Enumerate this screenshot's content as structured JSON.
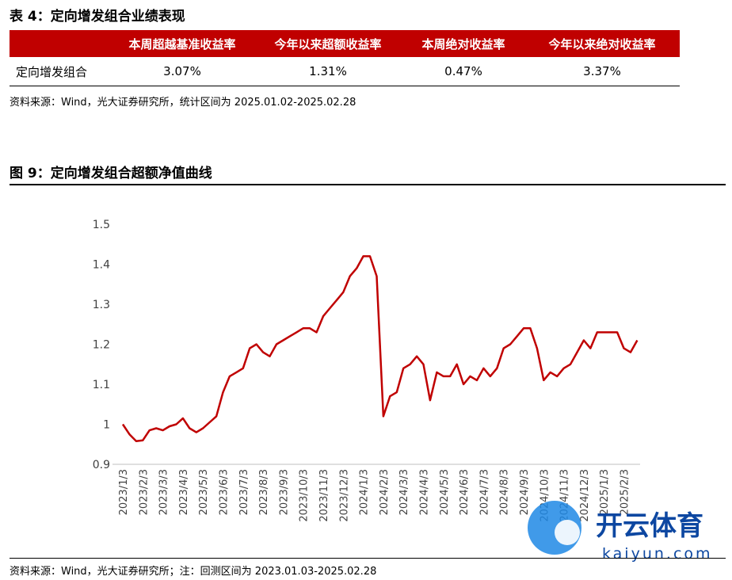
{
  "table_title": "表 4：定向增发组合业绩表现",
  "table": {
    "header": [
      "本周超越基准收益率",
      "今年以来超额收益率",
      "本周绝对收益率",
      "今年以来绝对收益率"
    ],
    "rows": [
      [
        "定向增发组合",
        "3.07%",
        "1.31%",
        "0.47%",
        "3.37%"
      ]
    ]
  },
  "table_source": "资料来源：Wind，光大证券研究所，统计区间为 2025.01.02-2025.02.28",
  "chart_data": {
    "type": "line",
    "title": "图 9：定向增发组合超额净值曲线",
    "categories": [
      "2023/1/3",
      null,
      null,
      "2023/2/3",
      null,
      null,
      "2023/3/3",
      null,
      null,
      "2023/4/3",
      null,
      null,
      "2023/5/3",
      null,
      null,
      "2023/6/3",
      null,
      null,
      "2023/7/3",
      null,
      null,
      "2023/8/3",
      null,
      null,
      "2023/9/3",
      null,
      null,
      "2023/10/3",
      null,
      null,
      "2023/11/3",
      null,
      null,
      "2023/12/3",
      null,
      null,
      "2024/1/3",
      null,
      null,
      "2024/2/3",
      null,
      null,
      "2024/3/3",
      null,
      null,
      "2024/4/3",
      null,
      null,
      "2024/5/3",
      null,
      null,
      "2024/6/3",
      null,
      null,
      "2024/7/3",
      null,
      null,
      "2024/8/3",
      null,
      null,
      "2024/9/3",
      null,
      null,
      "2024/10/3",
      null,
      null,
      "2024/11/3",
      null,
      null,
      "2024/12/3",
      null,
      null,
      "2025/1/3",
      null,
      null,
      "2025/2/3",
      null,
      null
    ],
    "series": [
      {
        "name": "定向增发组合超额净值",
        "color": "#c00000",
        "values": [
          1.0,
          0.975,
          0.958,
          0.96,
          0.985,
          0.99,
          0.985,
          0.995,
          1.0,
          1.015,
          0.99,
          0.98,
          0.99,
          1.005,
          1.02,
          1.08,
          1.12,
          1.13,
          1.14,
          1.19,
          1.2,
          1.18,
          1.17,
          1.2,
          1.21,
          1.22,
          1.23,
          1.24,
          1.24,
          1.23,
          1.27,
          1.29,
          1.31,
          1.33,
          1.37,
          1.39,
          1.42,
          1.42,
          1.37,
          1.02,
          1.07,
          1.08,
          1.14,
          1.15,
          1.17,
          1.15,
          1.06,
          1.13,
          1.12,
          1.12,
          1.15,
          1.1,
          1.12,
          1.11,
          1.14,
          1.12,
          1.14,
          1.19,
          1.2,
          1.22,
          1.24,
          1.24,
          1.19,
          1.11,
          1.13,
          1.12,
          1.14,
          1.15,
          1.18,
          1.21,
          1.19,
          1.23,
          1.23,
          1.23,
          1.23,
          1.19,
          1.18,
          1.21
        ]
      }
    ],
    "ylim": [
      0.9,
      1.5
    ],
    "yticks": [
      0.9,
      1,
      1.1,
      1.2,
      1.3,
      1.4,
      1.5
    ],
    "grid": false,
    "source": "资料来源：Wind，光大证券研究所；注：回测区间为 2023.01.03-2025.02.28"
  },
  "watermark": {
    "name": "开云体育",
    "url": "kaiyun.com"
  }
}
